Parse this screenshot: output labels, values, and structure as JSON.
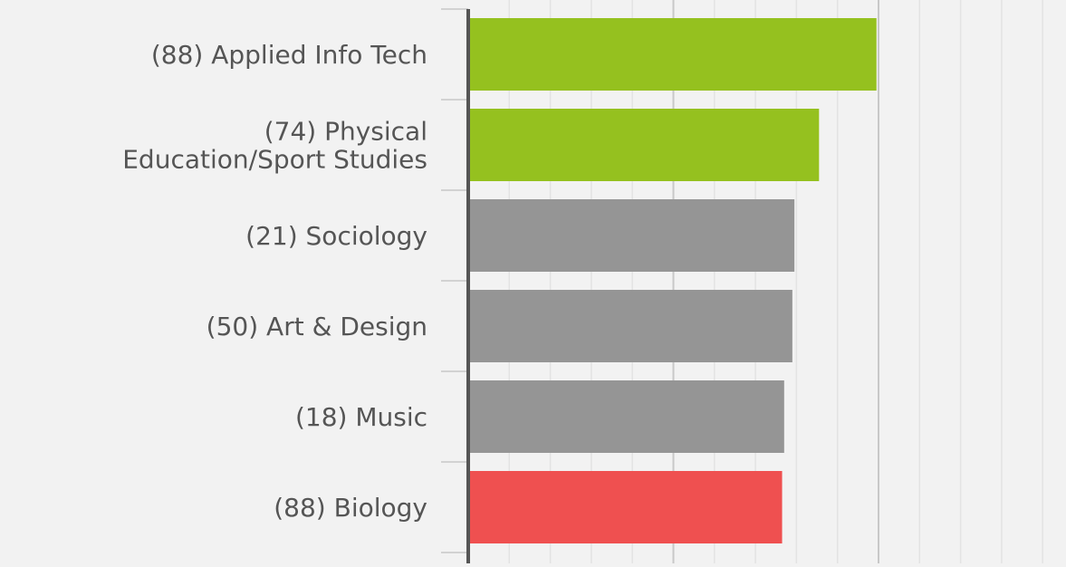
{
  "chart_data": {
    "type": "bar",
    "orientation": "horizontal",
    "categories": [
      [
        "(88) Applied Info Tech"
      ],
      [
        "(74) Physical",
        "Education/Sport Studies"
      ],
      [
        "(21) Sociology"
      ],
      [
        "(50) Art & Design"
      ],
      [
        "(18) Music"
      ],
      [
        "(88) Biology"
      ]
    ],
    "values": [
      99.5,
      85.5,
      79.5,
      79,
      77,
      76.5
    ],
    "colors": [
      "#95c11f",
      "#95c11f",
      "#959595",
      "#959595",
      "#959595",
      "#ef5050"
    ],
    "xlim": [
      0,
      100
    ],
    "grid": true,
    "title": "",
    "xlabel": "",
    "ylabel": "",
    "legend": "none"
  },
  "style": {
    "background": "#f2f2f2",
    "axis_color": "#555555",
    "grid_color": "#e3e3e3",
    "major_grid_color": "#c8c8c8",
    "label_color": "#555555"
  }
}
